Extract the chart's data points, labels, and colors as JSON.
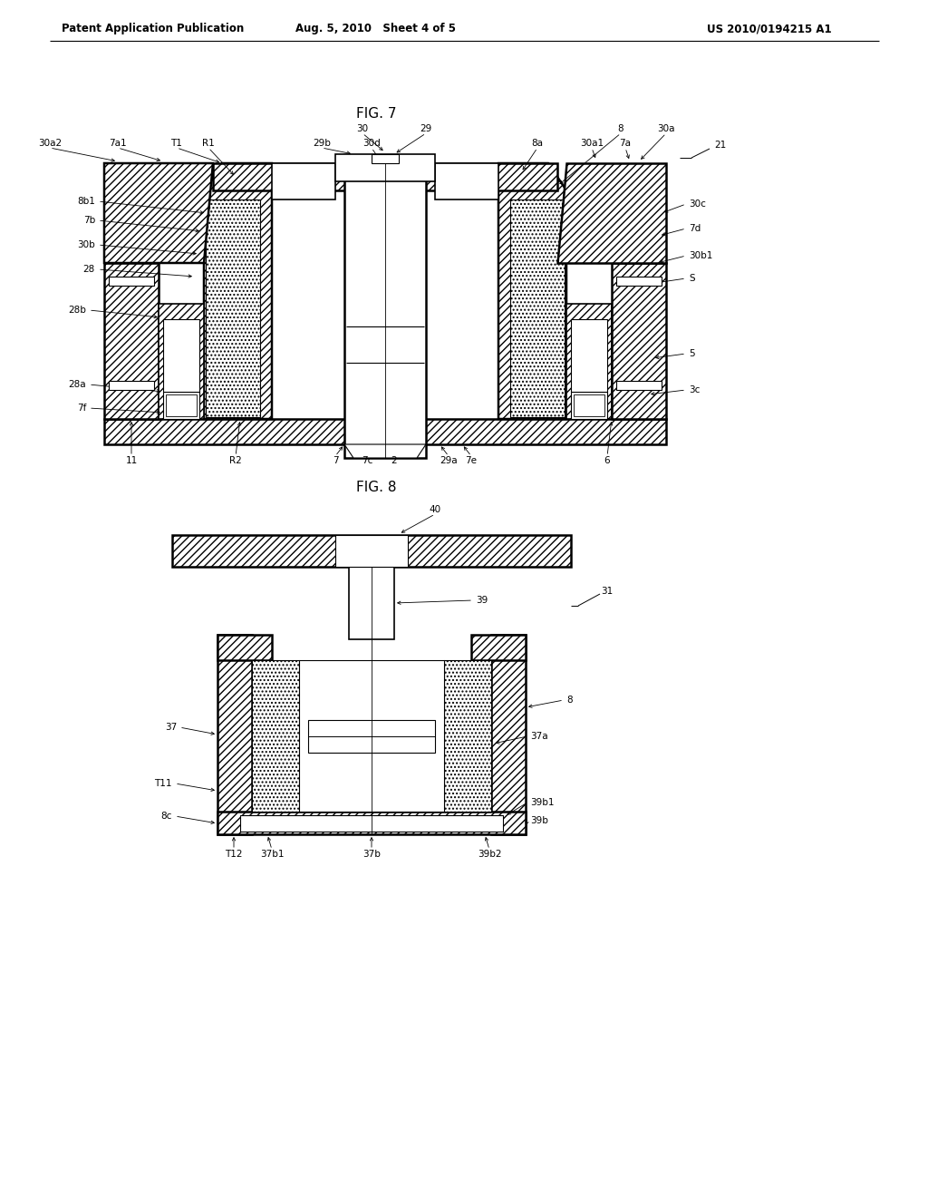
{
  "fig7_title": "FIG. 7",
  "fig8_title": "FIG. 8",
  "header_left": "Patent Application Publication",
  "header_center": "Aug. 5, 2010   Sheet 4 of 5",
  "header_right": "US 2010/0194215 A1",
  "bg_color": "#ffffff"
}
